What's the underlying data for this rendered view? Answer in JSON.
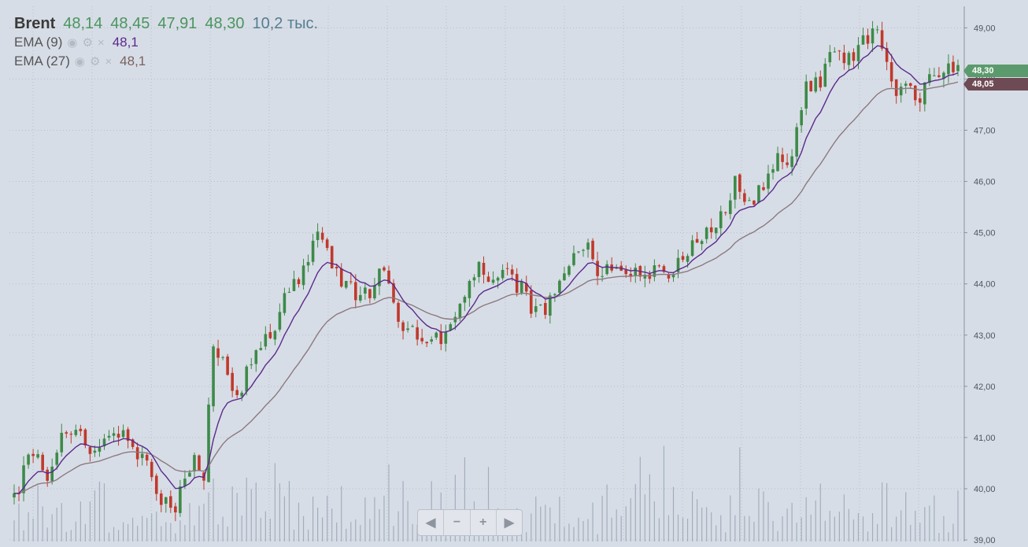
{
  "header": {
    "symbol": "Brent",
    "open": "48,14",
    "high": "48,45",
    "low": "47,91",
    "close": "48,30",
    "volume": "10,2 тыс."
  },
  "indicators": [
    {
      "name": "EMA (9)",
      "value": "48,1",
      "color": "#5a2a8c"
    },
    {
      "name": "EMA (27)",
      "value": "48,1",
      "color": "#7a6260"
    }
  ],
  "icons": {
    "eye": "eye-icon",
    "settings": "gear-icon",
    "remove": "close-icon"
  },
  "price_tags": {
    "last": "48,30",
    "ema": "48,05"
  },
  "navigation": {
    "left": "◀",
    "zoom_out": "−",
    "zoom_in": "+",
    "right": "▶"
  },
  "colors": {
    "background": "#d7dde6",
    "up": "#3d8a48",
    "down": "#c0392b",
    "ema9": "#5a2a8c",
    "ema27": "#8c7a80",
    "volume": "#9aa5b5",
    "last_tag": "#5b9a6c",
    "ema_tag": "#6e4a55"
  },
  "chart_data": {
    "type": "candlestick",
    "y_axis": {
      "ticks": [
        "39,00",
        "40,00",
        "41,00",
        "42,00",
        "43,00",
        "44,00",
        "45,00",
        "46,00",
        "47,00",
        "48,00",
        "49,00"
      ],
      "range": [
        38.97,
        49.42
      ]
    },
    "grid": true,
    "price_path": [
      [
        0,
        39.8
      ],
      [
        4,
        40.8
      ],
      [
        7,
        40.0
      ],
      [
        10,
        41.0
      ],
      [
        14,
        41.2
      ],
      [
        17,
        40.6
      ],
      [
        21,
        41.2
      ],
      [
        24,
        40.9
      ],
      [
        28,
        40.4
      ],
      [
        31,
        39.8
      ],
      [
        34,
        39.6
      ],
      [
        36,
        40.2
      ],
      [
        38,
        40.5
      ],
      [
        40,
        40.2
      ],
      [
        42,
        42.8
      ],
      [
        45,
        42.3
      ],
      [
        47,
        41.8
      ],
      [
        50,
        42.5
      ],
      [
        54,
        43.0
      ],
      [
        57,
        43.7
      ],
      [
        61,
        44.2
      ],
      [
        64,
        45.1
      ],
      [
        67,
        44.3
      ],
      [
        70,
        44.0
      ],
      [
        73,
        43.7
      ],
      [
        76,
        43.9
      ],
      [
        78,
        44.4
      ],
      [
        81,
        43.1
      ],
      [
        84,
        43.1
      ],
      [
        88,
        42.8
      ],
      [
        91,
        43.1
      ],
      [
        95,
        43.6
      ],
      [
        98,
        44.5
      ],
      [
        100,
        44.0
      ],
      [
        104,
        44.2
      ],
      [
        107,
        43.9
      ],
      [
        110,
        43.4
      ],
      [
        114,
        43.7
      ],
      [
        118,
        44.5
      ],
      [
        121,
        44.8
      ],
      [
        123,
        44.3
      ],
      [
        126,
        44.2
      ],
      [
        129,
        44.3
      ],
      [
        132,
        44.1
      ],
      [
        135,
        44.2
      ],
      [
        138,
        44.2
      ],
      [
        141,
        44.5
      ],
      [
        144,
        44.8
      ],
      [
        147,
        45.0
      ],
      [
        150,
        45.4
      ],
      [
        152,
        46.0
      ],
      [
        155,
        45.6
      ],
      [
        158,
        45.9
      ],
      [
        161,
        46.4
      ],
      [
        164,
        46.5
      ],
      [
        167,
        47.8
      ],
      [
        170,
        47.9
      ],
      [
        172,
        48.6
      ],
      [
        175,
        48.3
      ],
      [
        178,
        48.6
      ],
      [
        181,
        48.9
      ],
      [
        183,
        48.7
      ],
      [
        185,
        47.8
      ],
      [
        188,
        47.8
      ],
      [
        191,
        47.5
      ],
      [
        193,
        48.2
      ],
      [
        196,
        48.0
      ],
      [
        198,
        48.3
      ]
    ],
    "candle_count": 200,
    "series": [
      {
        "name": "EMA (9)",
        "period": 9
      },
      {
        "name": "EMA (27)",
        "period": 27
      }
    ]
  }
}
